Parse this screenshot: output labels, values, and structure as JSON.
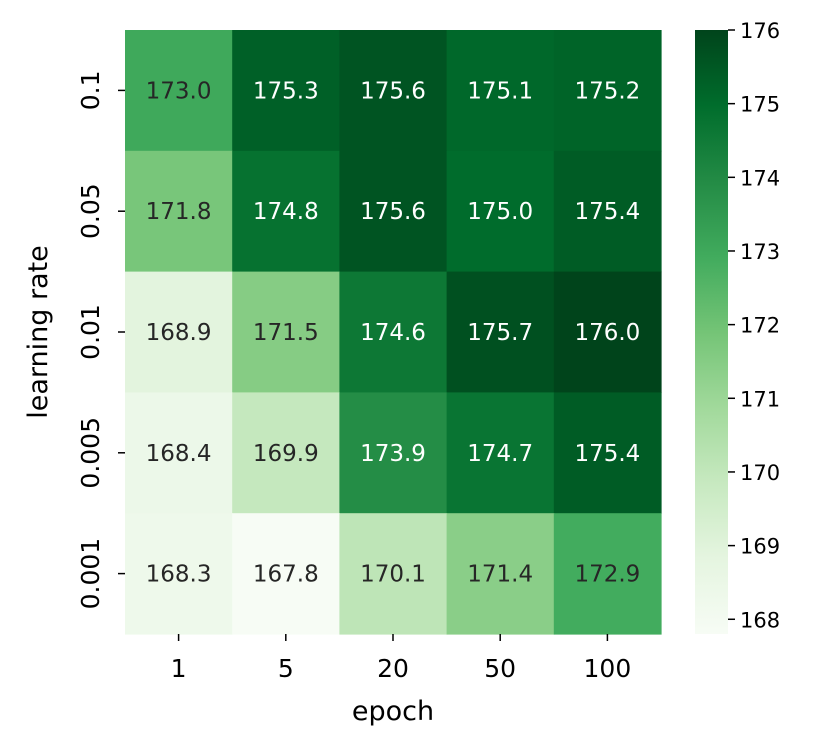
{
  "chart_data": {
    "type": "heatmap",
    "title": "",
    "xlabel": "epoch",
    "ylabel": "learning rate",
    "x_categories": [
      "1",
      "5",
      "20",
      "50",
      "100"
    ],
    "y_categories": [
      "0.1",
      "0.05",
      "0.01",
      "0.005",
      "0.001"
    ],
    "values": [
      [
        173.0,
        175.3,
        175.6,
        175.1,
        175.2
      ],
      [
        171.8,
        174.8,
        175.6,
        175.0,
        175.4
      ],
      [
        168.9,
        171.5,
        174.6,
        175.7,
        176.0
      ],
      [
        168.4,
        169.9,
        173.9,
        174.7,
        175.4
      ],
      [
        168.3,
        167.8,
        170.1,
        171.4,
        172.9
      ]
    ],
    "value_labels": [
      [
        "173.0",
        "175.3",
        "175.6",
        "175.1",
        "175.2"
      ],
      [
        "171.8",
        "174.8",
        "175.6",
        "175.0",
        "175.4"
      ],
      [
        "168.9",
        "171.5",
        "174.6",
        "175.7",
        "176.0"
      ],
      [
        "168.4",
        "169.9",
        "173.9",
        "174.7",
        "175.4"
      ],
      [
        "168.3",
        "167.8",
        "170.1",
        "171.4",
        "172.9"
      ]
    ],
    "colormap": "Greens",
    "colorbar": {
      "range": [
        167.8,
        176.0
      ],
      "ticks": [
        168,
        169,
        170,
        171,
        172,
        173,
        174,
        175,
        176
      ],
      "tick_labels": [
        "168",
        "169",
        "170",
        "171",
        "172",
        "173",
        "174",
        "175",
        "176"
      ]
    },
    "grid": false,
    "legend": "none"
  }
}
